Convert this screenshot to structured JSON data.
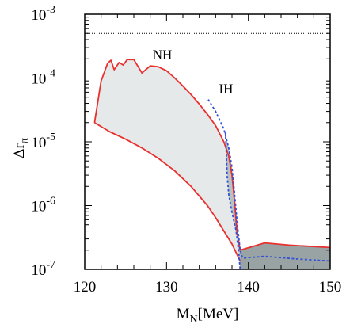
{
  "chart_data": {
    "type": "area",
    "xlabel_main": "M",
    "xlabel_sub": "N",
    "xlabel_unit": "[MeV]",
    "ylabel_main": "Δr",
    "ylabel_sub": "π",
    "xlim": [
      120,
      150
    ],
    "ylim": [
      1e-07,
      0.001
    ],
    "yscale": "log",
    "grid": false,
    "x_ticks": [
      {
        "value": 120,
        "label": "120"
      },
      {
        "value": 130,
        "label": "130"
      },
      {
        "value": 140,
        "label": "140"
      },
      {
        "value": 150,
        "label": "150"
      }
    ],
    "y_ticks": [
      {
        "value": 1e-07,
        "base": "10",
        "exp": "-7"
      },
      {
        "value": 1e-06,
        "base": "10",
        "exp": "-6"
      },
      {
        "value": 1e-05,
        "base": "10",
        "exp": "-5"
      },
      {
        "value": 0.0001,
        "base": "10",
        "exp": "-4"
      },
      {
        "value": 0.001,
        "base": "10",
        "exp": "-3"
      }
    ],
    "reference_line": {
      "y": 0.0005,
      "style": "dotted",
      "color": "#000000"
    },
    "annotations": [
      {
        "text": "NH",
        "x": 128.3,
        "y": 0.0002
      },
      {
        "text": "IH",
        "x": 136.4,
        "y": 5.8e-05
      }
    ],
    "series": [
      {
        "key": "nh_upper",
        "color": "#e8312f",
        "style": "solid",
        "points": [
          [
            121.2,
            2e-05
          ],
          [
            122.0,
            9e-05
          ],
          [
            122.8,
            0.00017
          ],
          [
            123.2,
            0.00019
          ],
          [
            123.6,
            0.000135
          ],
          [
            124.2,
            0.000175
          ],
          [
            124.7,
            0.00016
          ],
          [
            125.2,
            0.000195
          ],
          [
            126.0,
            0.000195
          ],
          [
            127.0,
            0.00012
          ],
          [
            128.0,
            0.000155
          ],
          [
            129.0,
            0.00015
          ],
          [
            130.0,
            0.00013
          ],
          [
            131.0,
            0.0001
          ],
          [
            132.0,
            7.5e-05
          ],
          [
            133.0,
            5.5e-05
          ],
          [
            134.0,
            3.9e-05
          ],
          [
            135.0,
            2.7e-05
          ],
          [
            136.0,
            1.8e-05
          ],
          [
            137.0,
            1e-05
          ],
          [
            137.6,
            6e-06
          ],
          [
            138.0,
            3e-06
          ],
          [
            138.3,
            1.2e-06
          ],
          [
            138.6,
            4e-07
          ],
          [
            139.0,
            2e-07
          ],
          [
            142.0,
            2.6e-07
          ],
          [
            145.0,
            2.4e-07
          ],
          [
            150.0,
            2.2e-07
          ]
        ]
      },
      {
        "key": "nh_lower",
        "color": "#e8312f",
        "style": "solid",
        "points": [
          [
            121.2,
            2e-05
          ],
          [
            123.0,
            1.45e-05
          ],
          [
            125.0,
            1.1e-05
          ],
          [
            127.0,
            8e-06
          ],
          [
            129.0,
            5.5e-06
          ],
          [
            131.0,
            3.5e-06
          ],
          [
            133.0,
            2e-06
          ],
          [
            135.0,
            1e-06
          ],
          [
            136.0,
            6.5e-07
          ],
          [
            137.0,
            4e-07
          ],
          [
            138.0,
            2.5e-07
          ],
          [
            139.0,
            1.35e-07
          ]
        ]
      },
      {
        "key": "ih_outer",
        "color": "#3050d8",
        "style": "dashed",
        "points": [
          [
            135.1,
            4.6e-05
          ],
          [
            136.0,
            3e-05
          ],
          [
            137.0,
            1.6e-05
          ],
          [
            137.6,
            8e-06
          ],
          [
            138.0,
            4e-06
          ],
          [
            138.3,
            1.6e-06
          ],
          [
            138.6,
            6e-07
          ],
          [
            139.0,
            2e-07
          ],
          [
            139.3,
            1.5e-07
          ],
          [
            142.0,
            1.6e-07
          ],
          [
            146.0,
            1.45e-07
          ],
          [
            150.0,
            1.35e-07
          ]
        ]
      },
      {
        "key": "ih_inner",
        "color": "#3050d8",
        "style": "dashed",
        "points": [
          [
            137.2,
            1.4e-05
          ],
          [
            137.3,
            7e-06
          ],
          [
            137.4,
            3e-06
          ],
          [
            137.6,
            1.5e-06
          ],
          [
            137.9,
            9e-07
          ],
          [
            138.2,
            6e-07
          ],
          [
            138.5,
            4e-07
          ],
          [
            138.8,
            2e-07
          ],
          [
            139.0,
            1e-07
          ]
        ]
      }
    ]
  }
}
